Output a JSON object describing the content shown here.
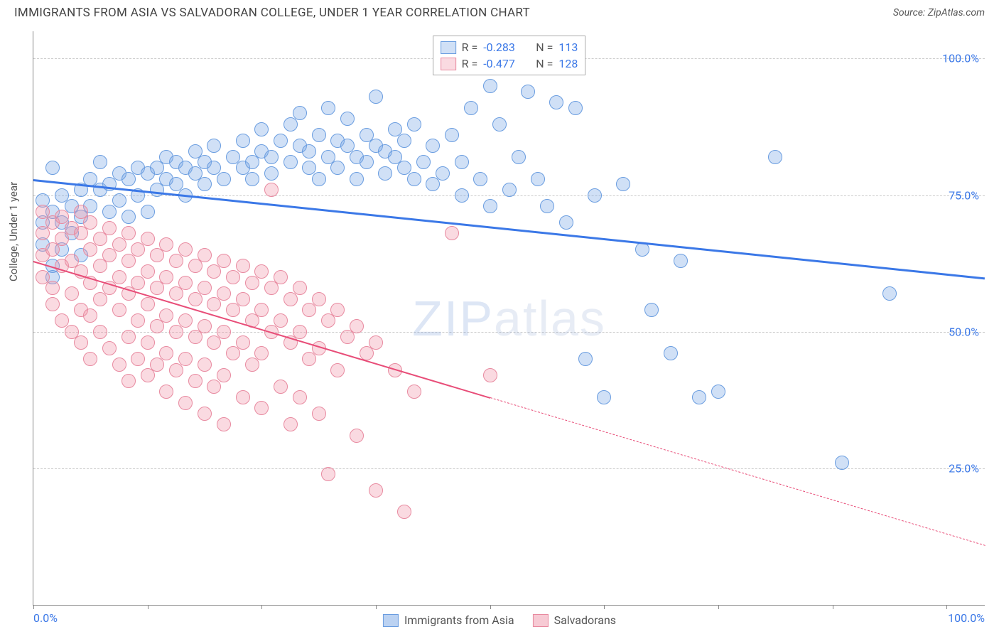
{
  "title": "IMMIGRANTS FROM ASIA VS SALVADORAN COLLEGE, UNDER 1 YEAR CORRELATION CHART",
  "source": "Source: ZipAtlas.com",
  "yaxis_label": "College, Under 1 year",
  "watermark": {
    "z": "Z",
    "i": "I",
    "p": "P",
    "rest": "atlas"
  },
  "chart": {
    "type": "scatter",
    "xlim": [
      0,
      100
    ],
    "ylim": [
      0,
      105
    ],
    "x_ticks": [
      0,
      12,
      24,
      36,
      48,
      60,
      72,
      84,
      96
    ],
    "x_tick_labels": {
      "0": "0.0%",
      "100": "100.0%"
    },
    "y_ticks": [
      25,
      50,
      75,
      100
    ],
    "y_tick_labels": {
      "25": "25.0%",
      "50": "50.0%",
      "75": "75.0%",
      "100": "100.0%"
    },
    "grid_color": "#cccccc",
    "background_color": "#ffffff",
    "series": [
      {
        "name": "Immigrants from Asia",
        "color_fill": "rgba(120,165,230,0.35)",
        "color_stroke": "#6a9de0",
        "marker_radius": 10,
        "r": "-0.283",
        "n": "113",
        "trend": {
          "x1": 0,
          "y1": 78,
          "x2": 100,
          "y2": 60,
          "color": "#3b78e7",
          "width": 3,
          "dash_after_x": null
        },
        "points": [
          [
            1,
            74
          ],
          [
            1,
            70
          ],
          [
            1,
            66
          ],
          [
            2,
            72
          ],
          [
            2,
            80
          ],
          [
            2,
            62
          ],
          [
            2,
            60
          ],
          [
            3,
            70
          ],
          [
            3,
            75
          ],
          [
            3,
            65
          ],
          [
            4,
            73
          ],
          [
            4,
            68
          ],
          [
            5,
            76
          ],
          [
            5,
            71
          ],
          [
            5,
            64
          ],
          [
            6,
            78
          ],
          [
            6,
            73
          ],
          [
            7,
            76
          ],
          [
            7,
            81
          ],
          [
            8,
            77
          ],
          [
            8,
            72
          ],
          [
            9,
            79
          ],
          [
            9,
            74
          ],
          [
            10,
            78
          ],
          [
            10,
            71
          ],
          [
            11,
            80
          ],
          [
            11,
            75
          ],
          [
            12,
            79
          ],
          [
            12,
            72
          ],
          [
            13,
            80
          ],
          [
            13,
            76
          ],
          [
            14,
            78
          ],
          [
            14,
            82
          ],
          [
            15,
            77
          ],
          [
            15,
            81
          ],
          [
            16,
            80
          ],
          [
            16,
            75
          ],
          [
            17,
            79
          ],
          [
            17,
            83
          ],
          [
            18,
            81
          ],
          [
            18,
            77
          ],
          [
            19,
            80
          ],
          [
            19,
            84
          ],
          [
            20,
            78
          ],
          [
            21,
            82
          ],
          [
            22,
            80
          ],
          [
            22,
            85
          ],
          [
            23,
            81
          ],
          [
            23,
            78
          ],
          [
            24,
            83
          ],
          [
            24,
            87
          ],
          [
            25,
            82
          ],
          [
            25,
            79
          ],
          [
            26,
            85
          ],
          [
            27,
            81
          ],
          [
            27,
            88
          ],
          [
            28,
            84
          ],
          [
            28,
            90
          ],
          [
            29,
            83
          ],
          [
            29,
            80
          ],
          [
            30,
            86
          ],
          [
            30,
            78
          ],
          [
            31,
            82
          ],
          [
            31,
            91
          ],
          [
            32,
            85
          ],
          [
            32,
            80
          ],
          [
            33,
            84
          ],
          [
            33,
            89
          ],
          [
            34,
            82
          ],
          [
            34,
            78
          ],
          [
            35,
            86
          ],
          [
            35,
            81
          ],
          [
            36,
            84
          ],
          [
            36,
            93
          ],
          [
            37,
            83
          ],
          [
            37,
            79
          ],
          [
            38,
            82
          ],
          [
            38,
            87
          ],
          [
            39,
            80
          ],
          [
            39,
            85
          ],
          [
            40,
            78
          ],
          [
            40,
            88
          ],
          [
            41,
            81
          ],
          [
            42,
            77
          ],
          [
            42,
            84
          ],
          [
            43,
            79
          ],
          [
            44,
            86
          ],
          [
            45,
            75
          ],
          [
            45,
            81
          ],
          [
            46,
            91
          ],
          [
            47,
            78
          ],
          [
            48,
            73
          ],
          [
            48,
            95
          ],
          [
            49,
            88
          ],
          [
            50,
            76
          ],
          [
            51,
            82
          ],
          [
            52,
            94
          ],
          [
            53,
            78
          ],
          [
            54,
            73
          ],
          [
            55,
            92
          ],
          [
            56,
            70
          ],
          [
            57,
            91
          ],
          [
            58,
            45
          ],
          [
            59,
            75
          ],
          [
            60,
            38
          ],
          [
            62,
            77
          ],
          [
            64,
            65
          ],
          [
            65,
            54
          ],
          [
            67,
            46
          ],
          [
            68,
            63
          ],
          [
            70,
            38
          ],
          [
            72,
            39
          ],
          [
            78,
            82
          ],
          [
            85,
            26
          ],
          [
            90,
            57
          ]
        ]
      },
      {
        "name": "Salvadorans",
        "color_fill": "rgba(240,150,170,0.35)",
        "color_stroke": "#e88aa0",
        "marker_radius": 10,
        "r": "-0.477",
        "n": "128",
        "trend": {
          "x1": 0,
          "y1": 63,
          "x2": 100,
          "y2": 11,
          "color": "#e84d78",
          "width": 2,
          "dash_after_x": 48
        },
        "points": [
          [
            1,
            72
          ],
          [
            1,
            68
          ],
          [
            1,
            64
          ],
          [
            1,
            60
          ],
          [
            2,
            70
          ],
          [
            2,
            65
          ],
          [
            2,
            58
          ],
          [
            2,
            55
          ],
          [
            3,
            71
          ],
          [
            3,
            67
          ],
          [
            3,
            62
          ],
          [
            3,
            52
          ],
          [
            4,
            69
          ],
          [
            4,
            63
          ],
          [
            4,
            57
          ],
          [
            4,
            50
          ],
          [
            5,
            68
          ],
          [
            5,
            72
          ],
          [
            5,
            61
          ],
          [
            5,
            54
          ],
          [
            5,
            48
          ],
          [
            6,
            70
          ],
          [
            6,
            65
          ],
          [
            6,
            59
          ],
          [
            6,
            53
          ],
          [
            6,
            45
          ],
          [
            7,
            67
          ],
          [
            7,
            62
          ],
          [
            7,
            56
          ],
          [
            7,
            50
          ],
          [
            8,
            69
          ],
          [
            8,
            64
          ],
          [
            8,
            58
          ],
          [
            8,
            47
          ],
          [
            9,
            66
          ],
          [
            9,
            60
          ],
          [
            9,
            54
          ],
          [
            9,
            44
          ],
          [
            10,
            68
          ],
          [
            10,
            63
          ],
          [
            10,
            57
          ],
          [
            10,
            49
          ],
          [
            10,
            41
          ],
          [
            11,
            65
          ],
          [
            11,
            59
          ],
          [
            11,
            52
          ],
          [
            11,
            45
          ],
          [
            12,
            67
          ],
          [
            12,
            61
          ],
          [
            12,
            55
          ],
          [
            12,
            48
          ],
          [
            12,
            42
          ],
          [
            13,
            64
          ],
          [
            13,
            58
          ],
          [
            13,
            51
          ],
          [
            13,
            44
          ],
          [
            14,
            66
          ],
          [
            14,
            60
          ],
          [
            14,
            53
          ],
          [
            14,
            46
          ],
          [
            14,
            39
          ],
          [
            15,
            63
          ],
          [
            15,
            57
          ],
          [
            15,
            50
          ],
          [
            15,
            43
          ],
          [
            16,
            65
          ],
          [
            16,
            59
          ],
          [
            16,
            52
          ],
          [
            16,
            45
          ],
          [
            16,
            37
          ],
          [
            17,
            62
          ],
          [
            17,
            56
          ],
          [
            17,
            49
          ],
          [
            17,
            41
          ],
          [
            18,
            64
          ],
          [
            18,
            58
          ],
          [
            18,
            51
          ],
          [
            18,
            44
          ],
          [
            18,
            35
          ],
          [
            19,
            61
          ],
          [
            19,
            55
          ],
          [
            19,
            48
          ],
          [
            19,
            40
          ],
          [
            20,
            63
          ],
          [
            20,
            57
          ],
          [
            20,
            50
          ],
          [
            20,
            42
          ],
          [
            20,
            33
          ],
          [
            21,
            60
          ],
          [
            21,
            54
          ],
          [
            21,
            46
          ],
          [
            22,
            62
          ],
          [
            22,
            56
          ],
          [
            22,
            48
          ],
          [
            22,
            38
          ],
          [
            23,
            59
          ],
          [
            23,
            52
          ],
          [
            23,
            44
          ],
          [
            24,
            61
          ],
          [
            24,
            54
          ],
          [
            24,
            46
          ],
          [
            24,
            36
          ],
          [
            25,
            58
          ],
          [
            25,
            50
          ],
          [
            25,
            76
          ],
          [
            26,
            60
          ],
          [
            26,
            52
          ],
          [
            26,
            40
          ],
          [
            27,
            56
          ],
          [
            27,
            48
          ],
          [
            27,
            33
          ],
          [
            28,
            58
          ],
          [
            28,
            50
          ],
          [
            28,
            38
          ],
          [
            29,
            54
          ],
          [
            29,
            45
          ],
          [
            30,
            56
          ],
          [
            30,
            47
          ],
          [
            30,
            35
          ],
          [
            31,
            52
          ],
          [
            31,
            24
          ],
          [
            32,
            54
          ],
          [
            32,
            43
          ],
          [
            33,
            49
          ],
          [
            34,
            51
          ],
          [
            34,
            31
          ],
          [
            35,
            46
          ],
          [
            36,
            48
          ],
          [
            36,
            21
          ],
          [
            38,
            43
          ],
          [
            39,
            17
          ],
          [
            40,
            39
          ],
          [
            44,
            68
          ],
          [
            48,
            42
          ]
        ]
      }
    ]
  },
  "legend_bottom": [
    {
      "label": "Immigrants from Asia",
      "fill": "rgba(120,165,230,0.5)",
      "stroke": "#6a9de0"
    },
    {
      "label": "Salvadorans",
      "fill": "rgba(240,150,170,0.5)",
      "stroke": "#e88aa0"
    }
  ]
}
